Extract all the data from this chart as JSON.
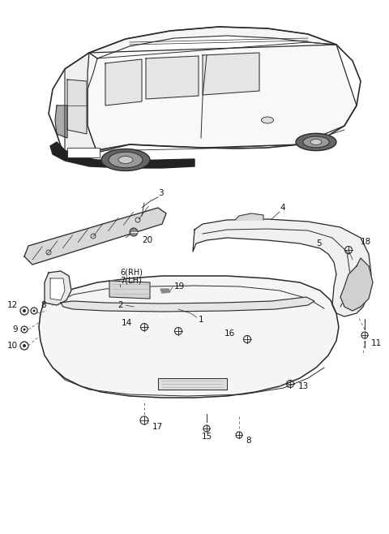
{
  "bg_color": "#ffffff",
  "fig_width": 4.8,
  "fig_height": 6.58,
  "dpi": 100,
  "line_color": "#2a2a2a",
  "label_color": "#111111",
  "label_fontsize": 7.5
}
